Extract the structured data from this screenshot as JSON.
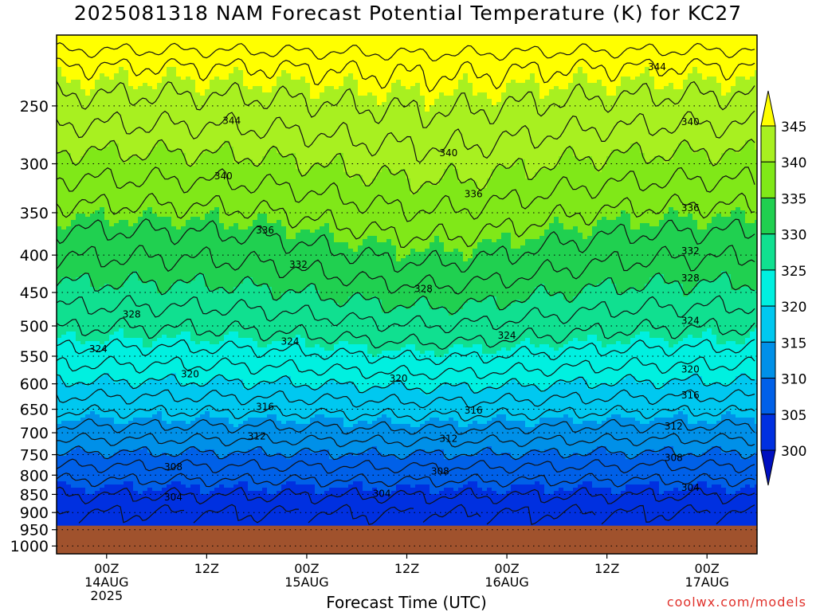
{
  "title": "2025081318 NAM Forecast Potential Temperature (K) for KC27",
  "credit": "coolwx.com/models",
  "chart_data": {
    "type": "contour",
    "title": "2025081318 NAM Forecast Potential Temperature (K) for KC27",
    "xlabel": "Forecast Time (UTC)",
    "ylabel": "",
    "x_ticks": [
      {
        "hours": 6,
        "lines": [
          "00Z",
          "14AUG",
          "2025"
        ]
      },
      {
        "hours": 18,
        "lines": [
          "12Z"
        ]
      },
      {
        "hours": 30,
        "lines": [
          "00Z",
          "15AUG"
        ]
      },
      {
        "hours": 42,
        "lines": [
          "12Z"
        ]
      },
      {
        "hours": 54,
        "lines": [
          "00Z",
          "16AUG"
        ]
      },
      {
        "hours": 66,
        "lines": [
          "12Z"
        ]
      },
      {
        "hours": 78,
        "lines": [
          "00Z",
          "17AUG"
        ]
      }
    ],
    "xlim_hours": [
      0,
      84
    ],
    "y_ticks": [
      250,
      300,
      350,
      400,
      450,
      500,
      550,
      600,
      650,
      700,
      750,
      800,
      850,
      900,
      950,
      1000
    ],
    "ylim_hpa": [
      200,
      1025
    ],
    "y_scale": "log",
    "surface_pressure_hpa": 938,
    "surface_color": "#a0522d",
    "colorbar": {
      "ticks": [
        345,
        340,
        335,
        330,
        325,
        320,
        315,
        310,
        305,
        300
      ],
      "extend": "both",
      "levels": [
        {
          "from": 345,
          "color": "#ffff00"
        },
        {
          "from": 340,
          "color": "#a8f020"
        },
        {
          "from": 335,
          "color": "#80e818"
        },
        {
          "from": 330,
          "color": "#20d050"
        },
        {
          "from": 325,
          "color": "#10e090"
        },
        {
          "from": 320,
          "color": "#00f0e0"
        },
        {
          "from": 315,
          "color": "#00c8f0"
        },
        {
          "from": 310,
          "color": "#0090e8"
        },
        {
          "from": 305,
          "color": "#0060e8"
        },
        {
          "from": 300,
          "color": "#0030e0"
        },
        {
          "from": 0,
          "color": "#0010c0"
        }
      ]
    },
    "contour_step": 2,
    "contour_labels": [
      {
        "value": 344,
        "hours": 21,
        "p": 262
      },
      {
        "value": 344,
        "hours": 72,
        "p": 221
      },
      {
        "value": 340,
        "hours": 20,
        "p": 312
      },
      {
        "value": 340,
        "hours": 47,
        "p": 290
      },
      {
        "value": 340,
        "hours": 76,
        "p": 263
      },
      {
        "value": 336,
        "hours": 25,
        "p": 370
      },
      {
        "value": 336,
        "hours": 50,
        "p": 330
      },
      {
        "value": 336,
        "hours": 76,
        "p": 345
      },
      {
        "value": 332,
        "hours": 29,
        "p": 412
      },
      {
        "value": 332,
        "hours": 76,
        "p": 395
      },
      {
        "value": 328,
        "hours": 9,
        "p": 482
      },
      {
        "value": 328,
        "hours": 44,
        "p": 445
      },
      {
        "value": 328,
        "hours": 76,
        "p": 430
      },
      {
        "value": 324,
        "hours": 5,
        "p": 538
      },
      {
        "value": 324,
        "hours": 28,
        "p": 525
      },
      {
        "value": 324,
        "hours": 54,
        "p": 515
      },
      {
        "value": 324,
        "hours": 76,
        "p": 492
      },
      {
        "value": 320,
        "hours": 16,
        "p": 582
      },
      {
        "value": 320,
        "hours": 41,
        "p": 590
      },
      {
        "value": 320,
        "hours": 76,
        "p": 573
      },
      {
        "value": 316,
        "hours": 25,
        "p": 645
      },
      {
        "value": 316,
        "hours": 50,
        "p": 652
      },
      {
        "value": 316,
        "hours": 76,
        "p": 622
      },
      {
        "value": 312,
        "hours": 24,
        "p": 708
      },
      {
        "value": 312,
        "hours": 47,
        "p": 713
      },
      {
        "value": 312,
        "hours": 74,
        "p": 686
      },
      {
        "value": 308,
        "hours": 14,
        "p": 780
      },
      {
        "value": 308,
        "hours": 46,
        "p": 790
      },
      {
        "value": 308,
        "hours": 74,
        "p": 757
      },
      {
        "value": 304,
        "hours": 14,
        "p": 858
      },
      {
        "value": 304,
        "hours": 39,
        "p": 848
      },
      {
        "value": 304,
        "hours": 76,
        "p": 832
      }
    ]
  }
}
